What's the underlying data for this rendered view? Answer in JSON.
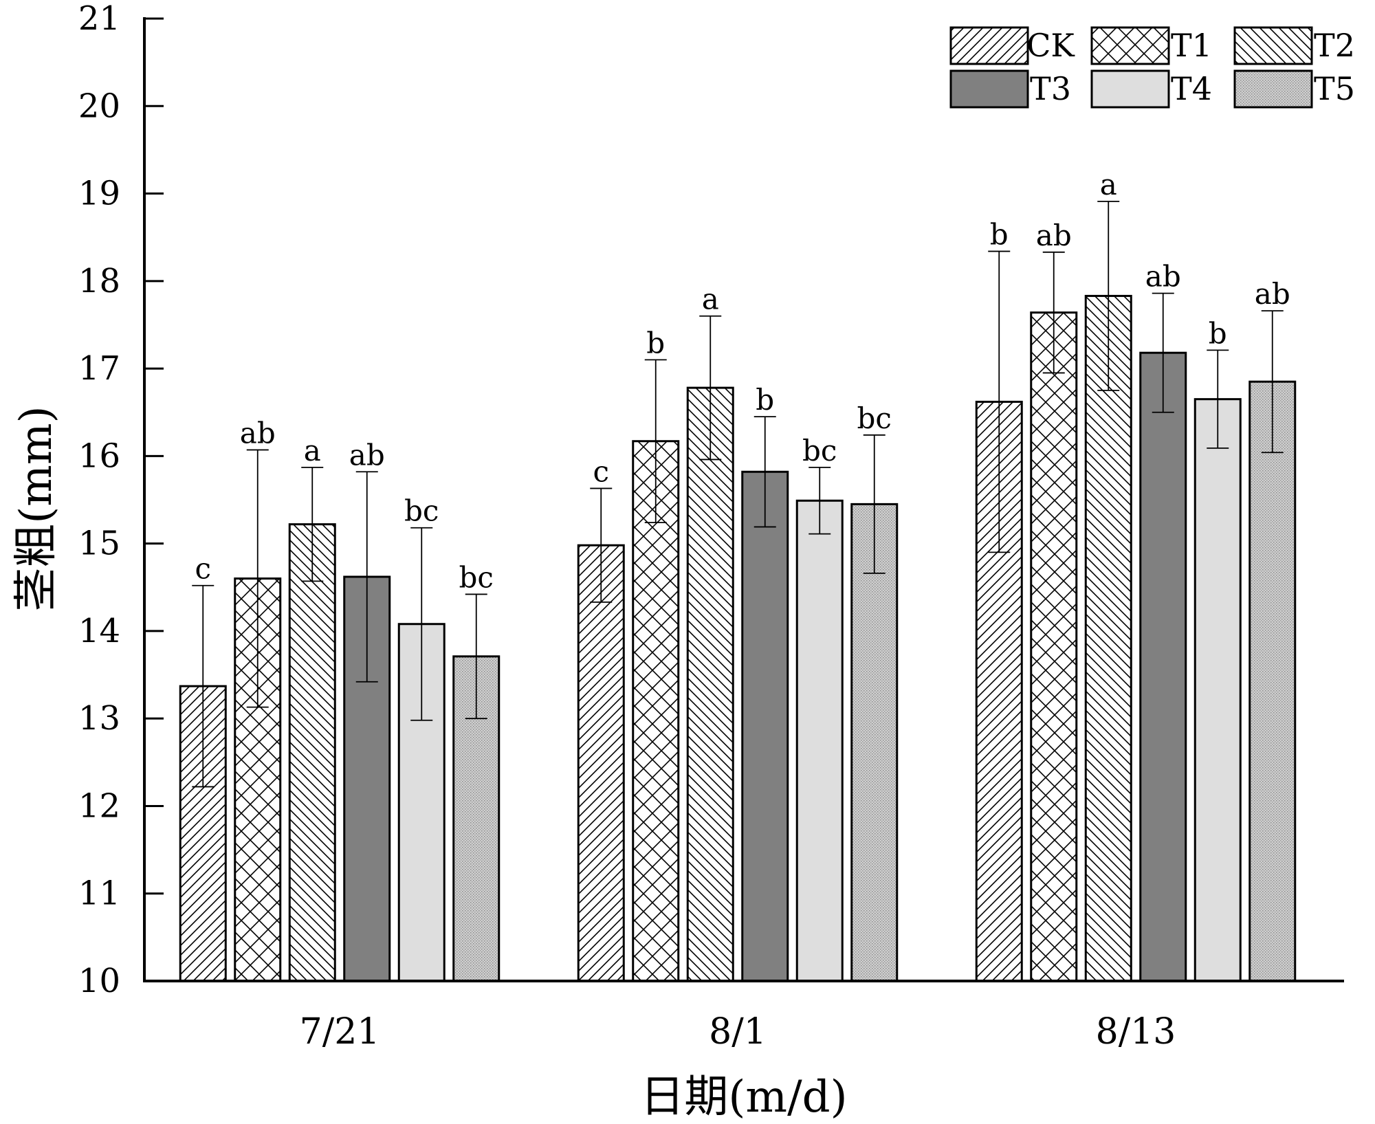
{
  "chart_data": {
    "type": "bar",
    "title": "",
    "xlabel": "日期(m/d)",
    "ylabel": "茎粗(mm)",
    "ylim": [
      10,
      21
    ],
    "yticks": [
      10,
      11,
      12,
      13,
      14,
      15,
      16,
      17,
      18,
      19,
      20,
      21
    ],
    "categories": [
      "7/21",
      "8/1",
      "8/13"
    ],
    "grid": false,
    "legend_position": "top-right",
    "series": [
      {
        "name": "CK",
        "pattern": "diag-right",
        "fill": "#ffffff",
        "values": [
          13.37,
          14.98,
          16.62
        ],
        "errors": [
          1.15,
          0.65,
          1.72
        ],
        "labels": [
          "c",
          "c",
          "b"
        ]
      },
      {
        "name": "T1",
        "pattern": "crosshatch",
        "fill": "#ffffff",
        "values": [
          14.6,
          16.17,
          17.64
        ],
        "errors": [
          1.47,
          0.93,
          0.69
        ],
        "labels": [
          "ab",
          "b",
          "ab"
        ]
      },
      {
        "name": "T2",
        "pattern": "diag-left",
        "fill": "#ffffff",
        "values": [
          15.22,
          16.78,
          17.83
        ],
        "errors": [
          0.65,
          0.82,
          1.08
        ],
        "labels": [
          "a",
          "a",
          "a"
        ]
      },
      {
        "name": "T3",
        "pattern": "solid",
        "fill": "#808080",
        "values": [
          14.62,
          15.82,
          17.18
        ],
        "errors": [
          1.2,
          0.63,
          0.68
        ],
        "labels": [
          "ab",
          "b",
          "ab"
        ]
      },
      {
        "name": "T4",
        "pattern": "solid",
        "fill": "#dedede",
        "values": [
          14.08,
          15.49,
          16.65
        ],
        "errors": [
          1.1,
          0.38,
          0.56
        ],
        "labels": [
          "bc",
          "bc",
          "b"
        ]
      },
      {
        "name": "T5",
        "pattern": "dotted",
        "fill": "#c8c8c8",
        "values": [
          13.71,
          15.45,
          16.85
        ],
        "errors": [
          0.71,
          0.79,
          0.81
        ],
        "labels": [
          "bc",
          "bc",
          "ab"
        ]
      }
    ]
  }
}
